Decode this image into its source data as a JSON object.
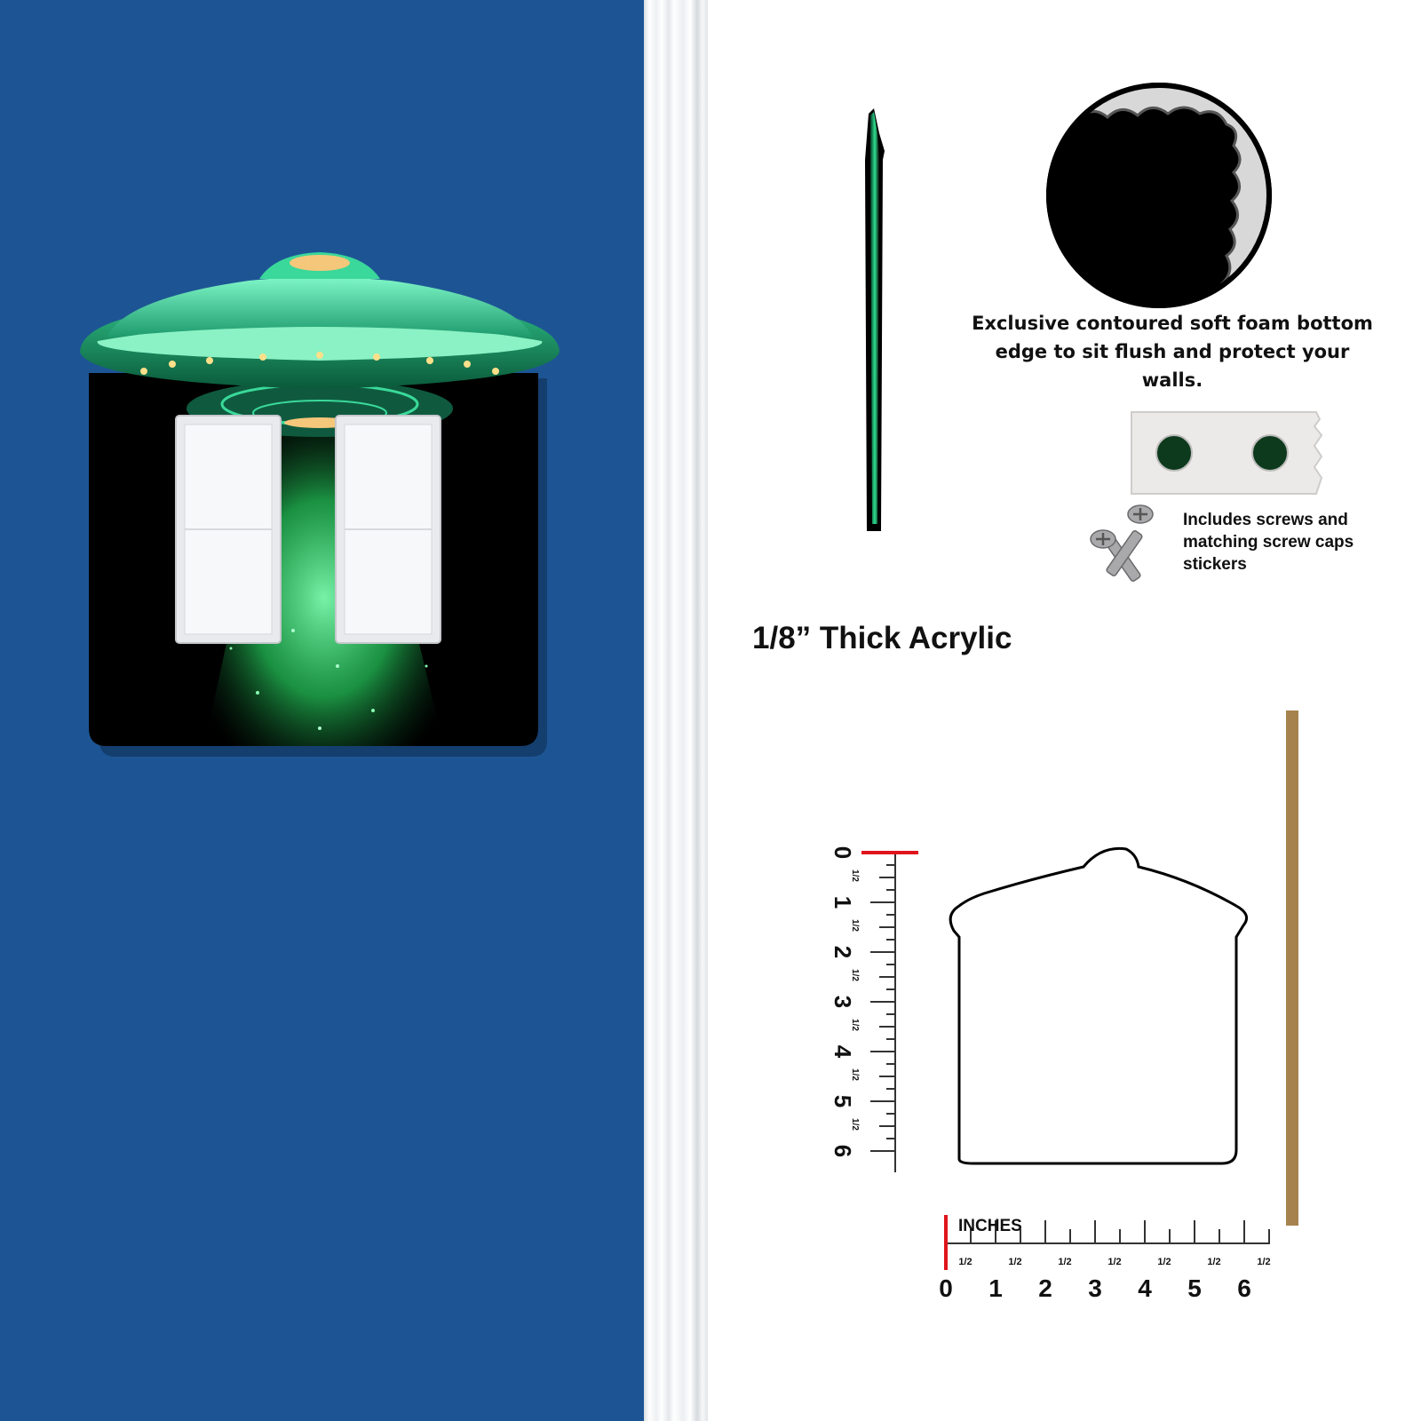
{
  "colors": {
    "wall": "#1d5594",
    "ufo_green": "#3fdc9a",
    "beam_green": "#38d86a",
    "plate_black": "#000000",
    "wood": "#a6824f",
    "ruler_red": "#e0141c"
  },
  "features": {
    "foam_caption": "Exclusive contoured soft foam bottom edge to sit flush and protect your walls.",
    "screws_caption": "Includes screws and matching screw caps stickers",
    "thickness_label": "1/8” Thick Acrylic"
  },
  "ruler": {
    "unit_label": "INCHES",
    "whole_marks": [
      "0",
      "1",
      "2",
      "3",
      "4",
      "5",
      "6"
    ],
    "half_mark": "1/2"
  },
  "icons": [
    "ufo-switch-plate",
    "foam-edge-closeup",
    "screw-cap-stickers",
    "screws-icon",
    "wall-plate-outline"
  ]
}
